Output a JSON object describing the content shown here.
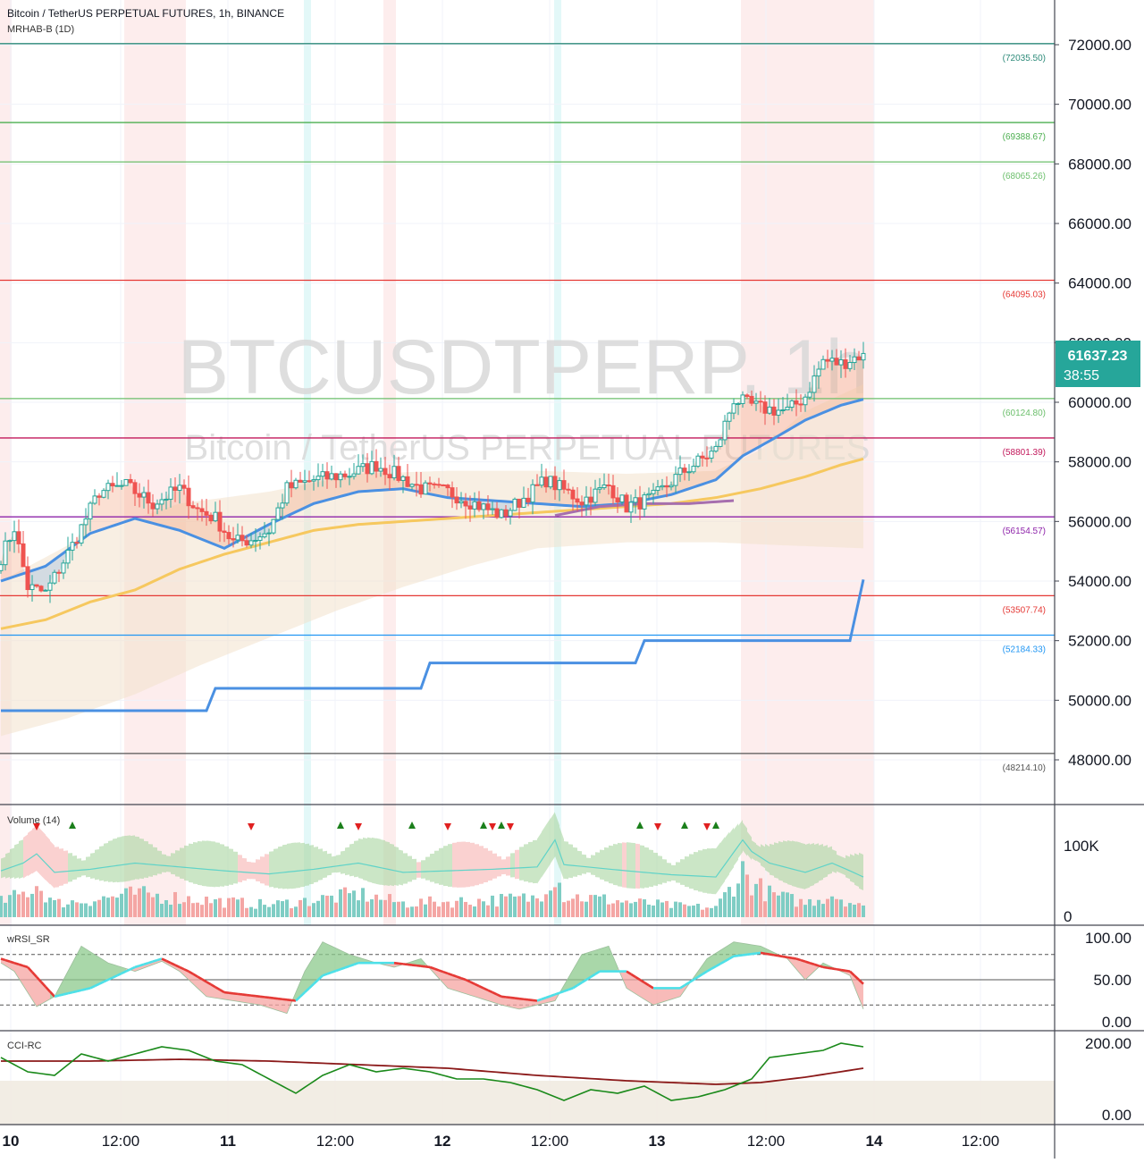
{
  "header": {
    "title": "Bitcoin / TetherUS PERPETUAL FUTURES, 1h, BINANCE",
    "indicator": "MRHAB-B (1D)"
  },
  "watermark": {
    "symbol": "BTCUSDTPERP, 1h",
    "description": "Bitcoin / TetherUS PERPETUAL FUTURES"
  },
  "price_badge": {
    "price": "61637.23",
    "countdown": "38:55",
    "color": "#26a69a"
  },
  "colors": {
    "up": "#26a69a",
    "down": "#ef5350",
    "ema_fast": "#4a90e2",
    "ema_slow": "#f6c85f",
    "step_line": "#4a90e2",
    "band_fill": "#f3e2cc",
    "purple_ma": "#a66fae"
  },
  "x_axis": {
    "labels": [
      "10",
      "12:00",
      "11",
      "12:00",
      "12",
      "12:00",
      "13",
      "12:00",
      "14",
      "12:00"
    ],
    "bold": [
      "10",
      "11",
      "12",
      "13",
      "14"
    ]
  },
  "chart_data": [
    {
      "type": "candlestick",
      "title": "Bitcoin / TetherUS PERPETUAL FUTURES, 1h, BINANCE",
      "y_ticks": [
        "72000.00",
        "70000.00",
        "68000.00",
        "66000.00",
        "64000.00",
        "62000.00",
        "60000.00",
        "58000.00",
        "56000.00",
        "54000.00",
        "52000.00",
        "50000.00",
        "48000.00"
      ],
      "ylim": [
        46500,
        73500
      ],
      "levels": [
        {
          "value": 72035.5,
          "label": "(72035.50)",
          "color": "#2e8b7a"
        },
        {
          "value": 69388.67,
          "label": "(69388.67)",
          "color": "#4caf50"
        },
        {
          "value": 68065.26,
          "label": "(68065.26)",
          "color": "#6cbf6c"
        },
        {
          "value": 64095.03,
          "label": "(64095.03)",
          "color": "#e53935"
        },
        {
          "value": 60124.8,
          "label": "(60124.80)",
          "color": "#6cbf6c"
        },
        {
          "value": 58801.39,
          "label": "(58801.39)",
          "color": "#c2185b"
        },
        {
          "value": 56154.57,
          "label": "(56154.57)",
          "color": "#8e24aa"
        },
        {
          "value": 53507.74,
          "label": "(53507.74)",
          "color": "#e53935"
        },
        {
          "value": 52184.33,
          "label": "(52184.33)",
          "color": "#2196f3"
        },
        {
          "value": 48214.1,
          "label": "(48214.10)",
          "color": "#555555"
        }
      ],
      "close_anchors": [
        [
          0,
          54800
        ],
        [
          3,
          55800
        ],
        [
          6,
          53800
        ],
        [
          10,
          53600
        ],
        [
          16,
          55200
        ],
        [
          22,
          57000
        ],
        [
          28,
          57200
        ],
        [
          34,
          56600
        ],
        [
          40,
          57100
        ],
        [
          44,
          56400
        ],
        [
          48,
          56100
        ],
        [
          52,
          55300
        ],
        [
          56,
          55400
        ],
        [
          60,
          55700
        ],
        [
          64,
          57100
        ],
        [
          70,
          57400
        ],
        [
          78,
          57600
        ],
        [
          84,
          57900
        ],
        [
          88,
          57600
        ],
        [
          94,
          57100
        ],
        [
          100,
          57000
        ],
        [
          106,
          56600
        ],
        [
          112,
          56200
        ],
        [
          118,
          56900
        ],
        [
          122,
          57400
        ],
        [
          130,
          56700
        ],
        [
          136,
          57200
        ],
        [
          140,
          56500
        ],
        [
          146,
          56800
        ],
        [
          152,
          57600
        ],
        [
          160,
          58400
        ],
        [
          164,
          60100
        ],
        [
          170,
          59800
        ],
        [
          176,
          59700
        ],
        [
          180,
          60200
        ],
        [
          184,
          61400
        ],
        [
          188,
          61300
        ],
        [
          193,
          61637
        ]
      ],
      "ema_fast_anchors": [
        [
          0,
          54000
        ],
        [
          10,
          54500
        ],
        [
          20,
          55600
        ],
        [
          30,
          56100
        ],
        [
          40,
          55700
        ],
        [
          50,
          55100
        ],
        [
          60,
          55900
        ],
        [
          70,
          56600
        ],
        [
          80,
          57000
        ],
        [
          90,
          57100
        ],
        [
          100,
          56800
        ],
        [
          110,
          56700
        ],
        [
          120,
          56600
        ],
        [
          130,
          56500
        ],
        [
          140,
          56600
        ],
        [
          150,
          56900
        ],
        [
          160,
          57400
        ],
        [
          166,
          58200
        ],
        [
          172,
          58700
        ],
        [
          180,
          59400
        ],
        [
          188,
          59900
        ],
        [
          193,
          60100
        ]
      ],
      "ema_slow_anchors": [
        [
          0,
          52400
        ],
        [
          10,
          52700
        ],
        [
          20,
          53300
        ],
        [
          30,
          53700
        ],
        [
          40,
          54400
        ],
        [
          50,
          54900
        ],
        [
          60,
          55300
        ],
        [
          70,
          55700
        ],
        [
          80,
          55900
        ],
        [
          90,
          56000
        ],
        [
          100,
          56100
        ],
        [
          110,
          56200
        ],
        [
          120,
          56300
        ],
        [
          130,
          56400
        ],
        [
          140,
          56500
        ],
        [
          150,
          56600
        ],
        [
          160,
          56800
        ],
        [
          170,
          57100
        ],
        [
          180,
          57500
        ],
        [
          188,
          57900
        ],
        [
          193,
          58100
        ]
      ],
      "purple_ma_anchors": [
        [
          124,
          56200
        ],
        [
          134,
          56500
        ],
        [
          144,
          56600
        ],
        [
          154,
          56600
        ],
        [
          164,
          56700
        ]
      ],
      "band_upper_anchors": [
        [
          0,
          54000
        ],
        [
          20,
          55600
        ],
        [
          40,
          56600
        ],
        [
          60,
          57000
        ],
        [
          80,
          57600
        ],
        [
          100,
          57700
        ],
        [
          120,
          57700
        ],
        [
          140,
          57600
        ],
        [
          160,
          57700
        ],
        [
          170,
          58400
        ],
        [
          180,
          59700
        ],
        [
          193,
          60600
        ]
      ],
      "band_lower_anchors": [
        [
          0,
          48800
        ],
        [
          15,
          49400
        ],
        [
          30,
          50200
        ],
        [
          45,
          51200
        ],
        [
          60,
          52100
        ],
        [
          75,
          53000
        ],
        [
          90,
          53800
        ],
        [
          105,
          54500
        ],
        [
          120,
          55100
        ],
        [
          140,
          55300
        ],
        [
          160,
          55300
        ],
        [
          175,
          55200
        ],
        [
          193,
          55100
        ]
      ],
      "step_line": [
        [
          0,
          49650
        ],
        [
          46,
          49650
        ],
        [
          48,
          50400
        ],
        [
          94,
          50400
        ],
        [
          96,
          51250
        ],
        [
          142,
          51250
        ],
        [
          144,
          52000
        ],
        [
          190,
          52000
        ],
        [
          193,
          54050
        ]
      ],
      "session_highlights": [
        [
          0,
          2
        ],
        [
          28,
          41
        ],
        [
          86,
          88
        ],
        [
          166,
          195
        ]
      ],
      "session_highlights_cyan": [
        [
          68,
          69
        ],
        [
          124,
          125
        ]
      ]
    },
    {
      "type": "area",
      "title": "Volume (14)",
      "y_ticks": [
        "100K",
        "0"
      ],
      "ylim": [
        0,
        140000
      ],
      "markers_up": [
        16,
        76,
        92,
        108,
        112,
        143,
        153,
        160
      ],
      "markers_down": [
        8,
        56,
        80,
        100,
        110,
        114,
        147,
        158
      ],
      "volume_anchors": [
        [
          0,
          20000
        ],
        [
          5,
          30000
        ],
        [
          8,
          42000
        ],
        [
          12,
          18000
        ],
        [
          20,
          22000
        ],
        [
          30,
          30000
        ],
        [
          40,
          25000
        ],
        [
          50,
          20000
        ],
        [
          60,
          16000
        ],
        [
          70,
          22000
        ],
        [
          80,
          30000
        ],
        [
          90,
          18000
        ],
        [
          100,
          20000
        ],
        [
          110,
          22000
        ],
        [
          120,
          25000
        ],
        [
          124,
          60000
        ],
        [
          126,
          28000
        ],
        [
          140,
          20000
        ],
        [
          150,
          15000
        ],
        [
          160,
          12000
        ],
        [
          166,
          60000
        ],
        [
          168,
          45000
        ],
        [
          172,
          30000
        ],
        [
          180,
          18000
        ],
        [
          186,
          30000
        ],
        [
          190,
          20000
        ],
        [
          193,
          12000
        ]
      ]
    },
    {
      "type": "line",
      "title": "wRSI_SR",
      "y_ticks": [
        "100.00",
        "50.00",
        "0.00"
      ],
      "ylim": [
        0,
        100
      ],
      "guides": [
        80,
        50,
        20
      ],
      "rsi_anchors": [
        [
          0,
          70
        ],
        [
          3,
          60
        ],
        [
          8,
          18
        ],
        [
          12,
          30
        ],
        [
          18,
          90
        ],
        [
          24,
          70
        ],
        [
          30,
          60
        ],
        [
          36,
          72
        ],
        [
          40,
          60
        ],
        [
          46,
          30
        ],
        [
          52,
          25
        ],
        [
          58,
          20
        ],
        [
          64,
          10
        ],
        [
          68,
          60
        ],
        [
          72,
          95
        ],
        [
          78,
          80
        ],
        [
          84,
          70
        ],
        [
          88,
          65
        ],
        [
          94,
          75
        ],
        [
          100,
          40
        ],
        [
          106,
          30
        ],
        [
          112,
          20
        ],
        [
          116,
          15
        ],
        [
          120,
          20
        ],
        [
          124,
          25
        ],
        [
          130,
          80
        ],
        [
          136,
          90
        ],
        [
          140,
          40
        ],
        [
          146,
          20
        ],
        [
          152,
          30
        ],
        [
          158,
          75
        ],
        [
          164,
          95
        ],
        [
          170,
          90
        ],
        [
          176,
          75
        ],
        [
          180,
          50
        ],
        [
          184,
          70
        ],
        [
          190,
          55
        ],
        [
          193,
          15
        ]
      ],
      "signal_anchors": [
        [
          0,
          75
        ],
        [
          6,
          65
        ],
        [
          12,
          30
        ],
        [
          20,
          40
        ],
        [
          30,
          65
        ],
        [
          36,
          75
        ],
        [
          42,
          60
        ],
        [
          50,
          35
        ],
        [
          58,
          30
        ],
        [
          66,
          25
        ],
        [
          72,
          55
        ],
        [
          80,
          70
        ],
        [
          88,
          70
        ],
        [
          96,
          65
        ],
        [
          104,
          50
        ],
        [
          112,
          30
        ],
        [
          120,
          25
        ],
        [
          128,
          40
        ],
        [
          134,
          60
        ],
        [
          140,
          60
        ],
        [
          146,
          40
        ],
        [
          152,
          40
        ],
        [
          158,
          60
        ],
        [
          164,
          78
        ],
        [
          170,
          82
        ],
        [
          178,
          75
        ],
        [
          184,
          65
        ],
        [
          190,
          60
        ],
        [
          193,
          45
        ]
      ]
    },
    {
      "type": "line",
      "title": "CCI-RC",
      "y_ticks": [
        "200.00",
        "0.00"
      ],
      "ylim": [
        -30,
        250
      ],
      "fill_band": [
        -30,
        95
      ],
      "cci_anchors": [
        [
          0,
          160
        ],
        [
          6,
          120
        ],
        [
          12,
          110
        ],
        [
          18,
          170
        ],
        [
          24,
          150
        ],
        [
          30,
          170
        ],
        [
          36,
          190
        ],
        [
          42,
          180
        ],
        [
          48,
          150
        ],
        [
          54,
          140
        ],
        [
          60,
          100
        ],
        [
          66,
          60
        ],
        [
          72,
          110
        ],
        [
          78,
          140
        ],
        [
          84,
          120
        ],
        [
          90,
          130
        ],
        [
          96,
          120
        ],
        [
          102,
          100
        ],
        [
          108,
          100
        ],
        [
          114,
          90
        ],
        [
          120,
          70
        ],
        [
          126,
          40
        ],
        [
          132,
          70
        ],
        [
          138,
          60
        ],
        [
          144,
          80
        ],
        [
          150,
          40
        ],
        [
          156,
          50
        ],
        [
          162,
          70
        ],
        [
          168,
          100
        ],
        [
          172,
          160
        ],
        [
          178,
          170
        ],
        [
          184,
          180
        ],
        [
          188,
          200
        ],
        [
          193,
          190
        ]
      ],
      "signal_anchors": [
        [
          0,
          150
        ],
        [
          20,
          150
        ],
        [
          40,
          155
        ],
        [
          60,
          150
        ],
        [
          80,
          140
        ],
        [
          100,
          130
        ],
        [
          120,
          110
        ],
        [
          140,
          95
        ],
        [
          160,
          85
        ],
        [
          170,
          90
        ],
        [
          180,
          105
        ],
        [
          193,
          130
        ]
      ]
    }
  ]
}
